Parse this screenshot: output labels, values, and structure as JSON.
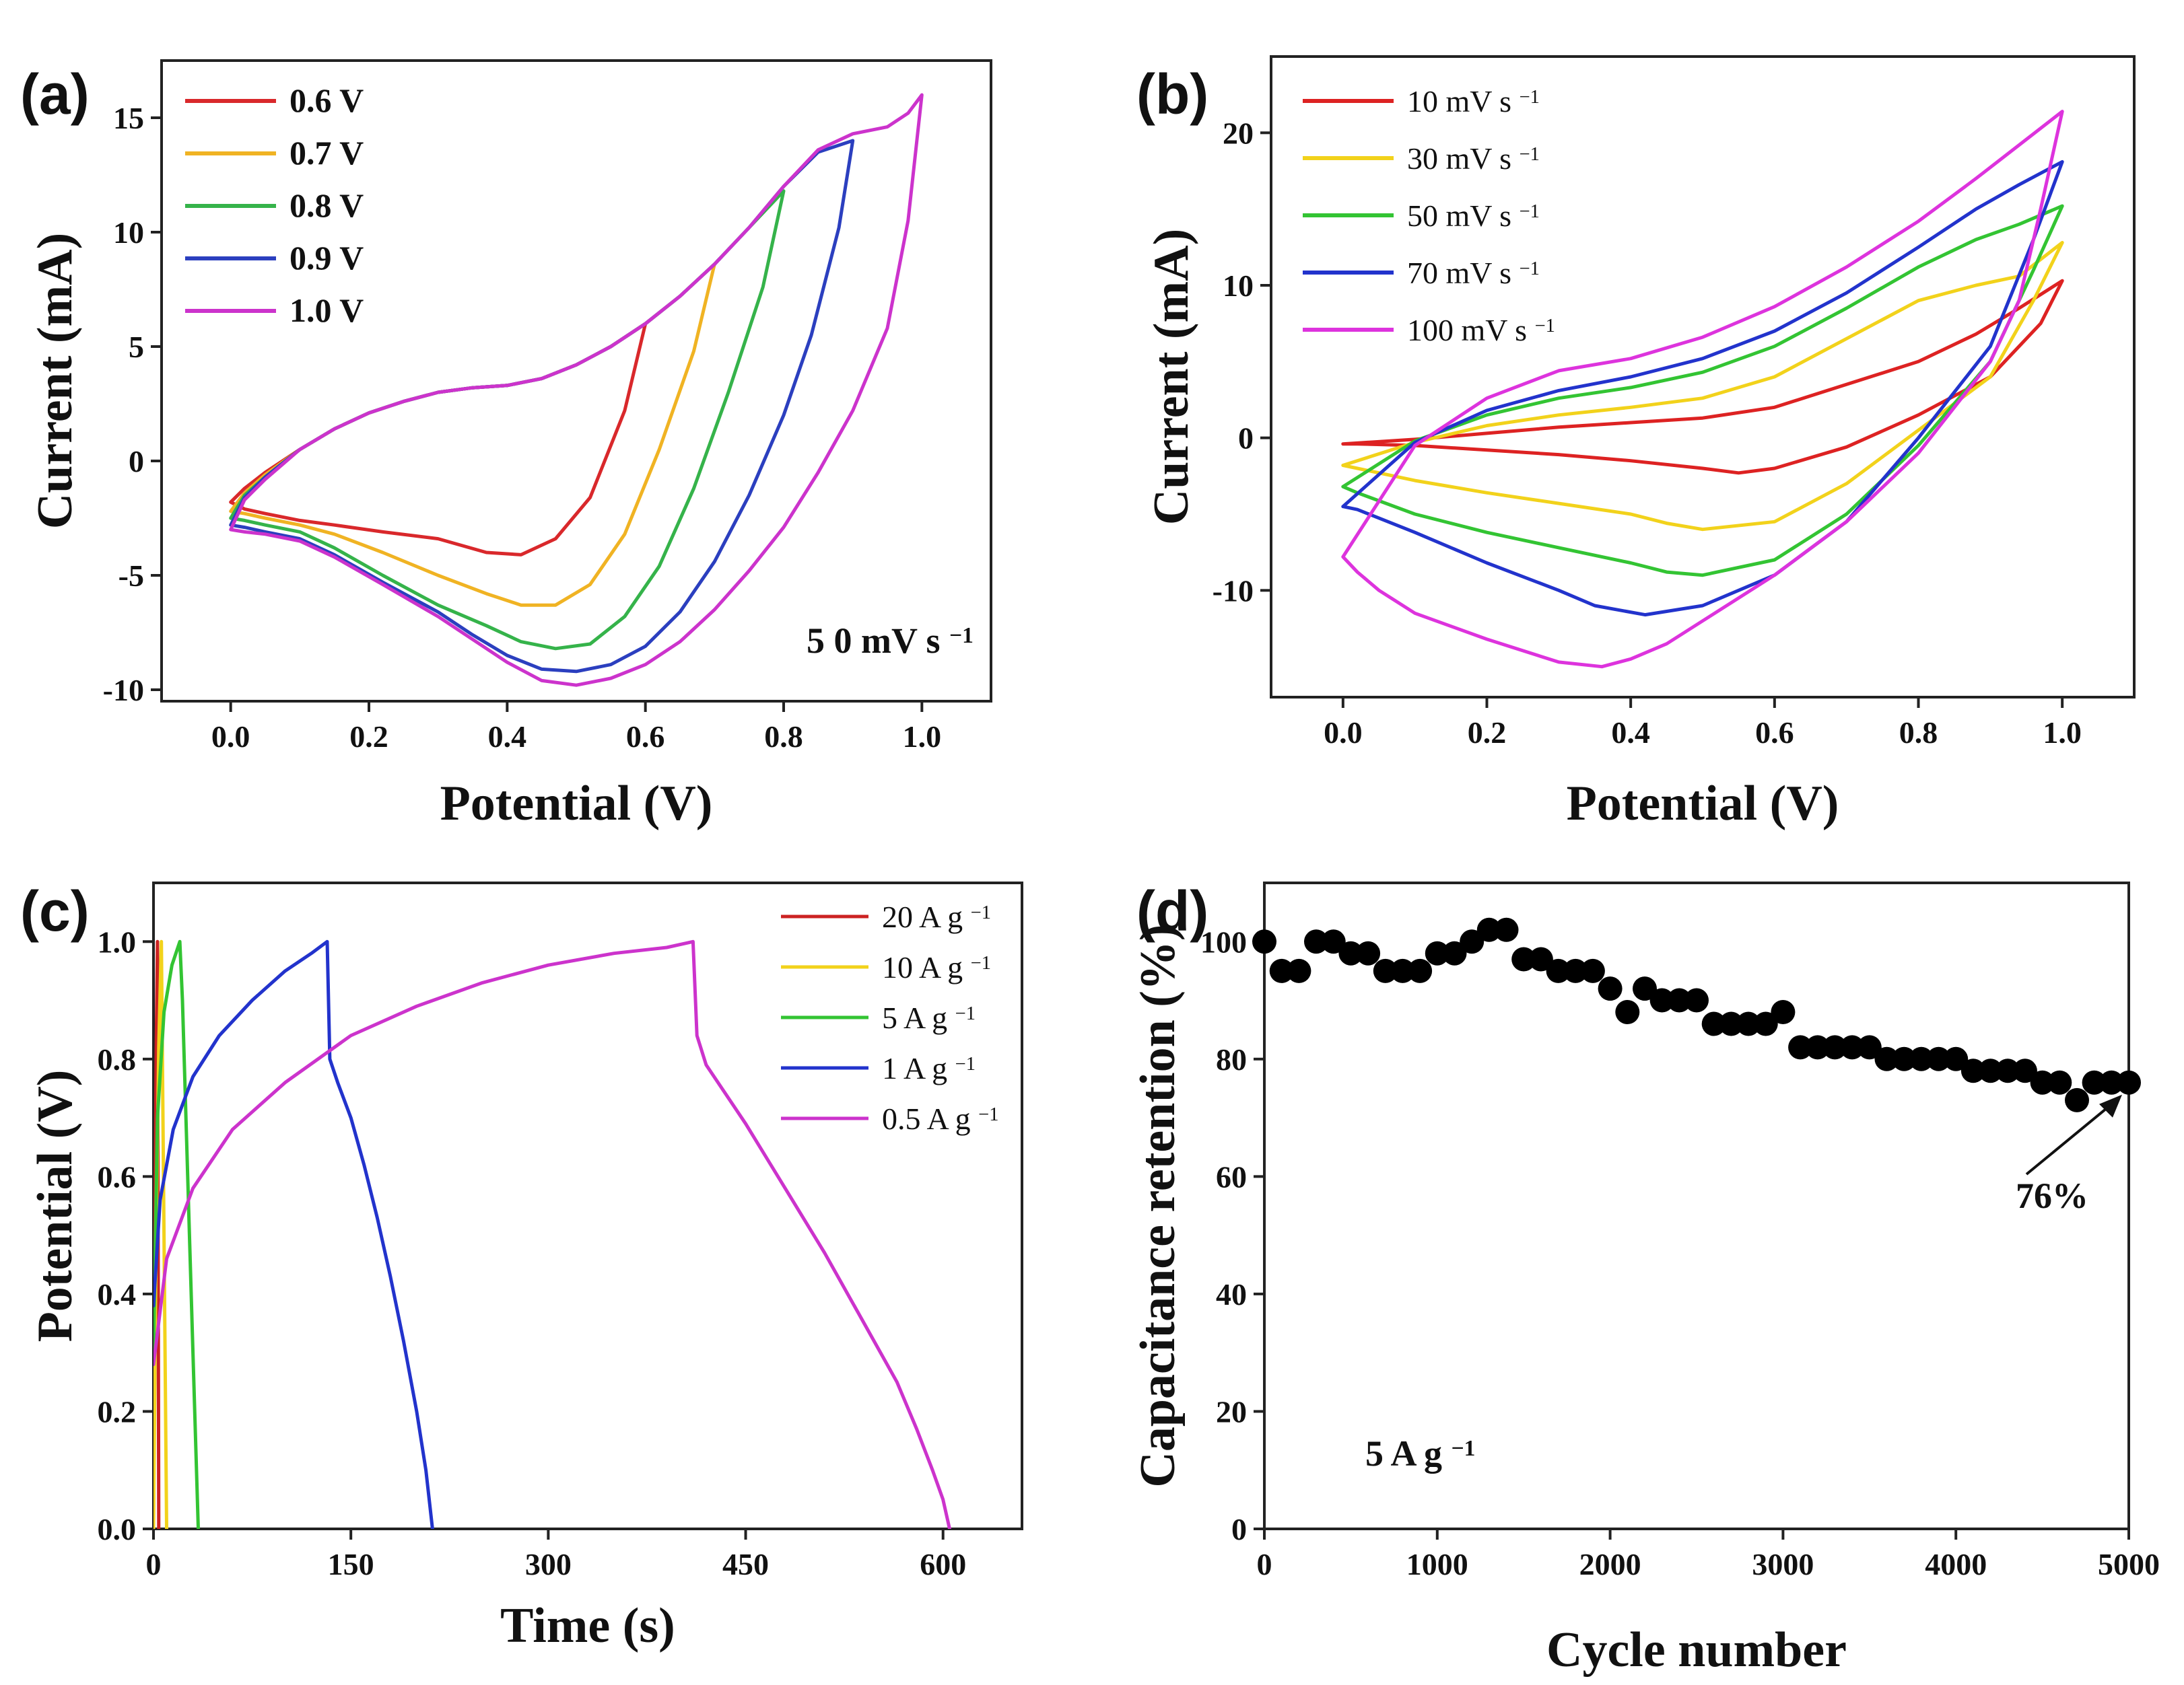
{
  "chart_data": [
    {
      "panel": "(a)",
      "type": "line",
      "xlabel": "Potential (V)",
      "ylabel": "Current (mA)",
      "xlim": [
        -0.1,
        1.1
      ],
      "ylim": [
        -10.5,
        17.5
      ],
      "xticks": [
        0.0,
        0.2,
        0.4,
        0.6,
        0.8,
        1.0
      ],
      "xtick_labels": [
        "0.0",
        "0.2",
        "0.4",
        "0.6",
        "0.8",
        "1.0"
      ],
      "yticks": [
        -10,
        -5,
        0,
        5,
        10,
        15
      ],
      "ytick_labels": [
        "-10",
        "-5",
        "0",
        "5",
        "10",
        "15"
      ],
      "legend_bold": true,
      "annotation": {
        "base": "5 0 mV s",
        "sup": "−1"
      },
      "series": [
        {
          "name": "0.6 V",
          "color": "#d9282b",
          "x": [
            0.0,
            0.02,
            0.05,
            0.1,
            0.15,
            0.2,
            0.25,
            0.3,
            0.35,
            0.4,
            0.45,
            0.5,
            0.55,
            0.6,
            0.57,
            0.52,
            0.47,
            0.42,
            0.37,
            0.3,
            0.22,
            0.15,
            0.1,
            0.05,
            0.02,
            0.0
          ],
          "y": [
            -1.8,
            -1.2,
            -0.5,
            0.5,
            1.4,
            2.1,
            2.6,
            3.0,
            3.2,
            3.3,
            3.6,
            4.2,
            5.0,
            6.0,
            2.2,
            -1.6,
            -3.4,
            -4.1,
            -4.0,
            -3.4,
            -3.1,
            -2.8,
            -2.6,
            -2.3,
            -2.1,
            -1.8
          ]
        },
        {
          "name": "0.7 V",
          "color": "#f0b323",
          "x": [
            0.0,
            0.02,
            0.05,
            0.1,
            0.15,
            0.2,
            0.25,
            0.3,
            0.35,
            0.4,
            0.45,
            0.5,
            0.55,
            0.6,
            0.65,
            0.7,
            0.67,
            0.62,
            0.57,
            0.52,
            0.47,
            0.42,
            0.37,
            0.3,
            0.22,
            0.15,
            0.1,
            0.05,
            0.02,
            0.0
          ],
          "y": [
            -2.2,
            -1.4,
            -0.6,
            0.5,
            1.4,
            2.1,
            2.6,
            3.0,
            3.2,
            3.3,
            3.6,
            4.2,
            5.0,
            6.0,
            7.2,
            8.6,
            4.8,
            0.5,
            -3.2,
            -5.4,
            -6.3,
            -6.3,
            -5.8,
            -5.0,
            -4.0,
            -3.2,
            -2.8,
            -2.5,
            -2.3,
            -2.2
          ]
        },
        {
          "name": "0.8 V",
          "color": "#35b34a",
          "x": [
            0.0,
            0.02,
            0.05,
            0.1,
            0.15,
            0.2,
            0.25,
            0.3,
            0.35,
            0.4,
            0.45,
            0.5,
            0.55,
            0.6,
            0.65,
            0.7,
            0.75,
            0.8,
            0.77,
            0.72,
            0.67,
            0.62,
            0.57,
            0.52,
            0.47,
            0.42,
            0.37,
            0.3,
            0.22,
            0.15,
            0.1,
            0.05,
            0.02,
            0.0
          ],
          "y": [
            -2.5,
            -1.5,
            -0.7,
            0.5,
            1.4,
            2.1,
            2.6,
            3.0,
            3.2,
            3.3,
            3.6,
            4.2,
            5.0,
            6.0,
            7.2,
            8.6,
            10.2,
            11.8,
            7.6,
            3.0,
            -1.2,
            -4.6,
            -6.8,
            -8.0,
            -8.2,
            -7.9,
            -7.2,
            -6.3,
            -5.0,
            -3.8,
            -3.1,
            -2.8,
            -2.6,
            -2.5
          ]
        },
        {
          "name": "0.9 V",
          "color": "#2b3fbf",
          "x": [
            0.0,
            0.02,
            0.05,
            0.1,
            0.15,
            0.2,
            0.25,
            0.3,
            0.35,
            0.4,
            0.45,
            0.5,
            0.55,
            0.6,
            0.65,
            0.7,
            0.75,
            0.8,
            0.85,
            0.9,
            0.88,
            0.84,
            0.8,
            0.75,
            0.7,
            0.65,
            0.6,
            0.55,
            0.5,
            0.45,
            0.4,
            0.35,
            0.3,
            0.22,
            0.15,
            0.1,
            0.05,
            0.02,
            0.0
          ],
          "y": [
            -2.8,
            -1.6,
            -0.7,
            0.5,
            1.4,
            2.1,
            2.6,
            3.0,
            3.2,
            3.3,
            3.6,
            4.2,
            5.0,
            6.0,
            7.2,
            8.6,
            10.2,
            12.0,
            13.5,
            14.0,
            10.2,
            5.5,
            2.0,
            -1.5,
            -4.4,
            -6.6,
            -8.1,
            -8.9,
            -9.2,
            -9.1,
            -8.5,
            -7.6,
            -6.6,
            -5.3,
            -4.1,
            -3.4,
            -3.1,
            -2.9,
            -2.8
          ]
        },
        {
          "name": "1.0 V",
          "color": "#cc33cc",
          "x": [
            0.0,
            0.02,
            0.05,
            0.1,
            0.15,
            0.2,
            0.25,
            0.3,
            0.35,
            0.4,
            0.45,
            0.5,
            0.55,
            0.6,
            0.65,
            0.7,
            0.75,
            0.8,
            0.85,
            0.9,
            0.95,
            0.98,
            1.0,
            0.98,
            0.95,
            0.9,
            0.85,
            0.8,
            0.75,
            0.7,
            0.65,
            0.6,
            0.55,
            0.5,
            0.45,
            0.4,
            0.35,
            0.3,
            0.22,
            0.15,
            0.1,
            0.05,
            0.02,
            0.0
          ],
          "y": [
            -3.0,
            -1.7,
            -0.8,
            0.5,
            1.4,
            2.1,
            2.6,
            3.0,
            3.2,
            3.3,
            3.6,
            4.2,
            5.0,
            6.0,
            7.2,
            8.6,
            10.2,
            12.0,
            13.6,
            14.3,
            14.6,
            15.2,
            16.0,
            10.5,
            5.8,
            2.2,
            -0.5,
            -2.9,
            -4.8,
            -6.5,
            -7.9,
            -8.9,
            -9.5,
            -9.8,
            -9.6,
            -8.8,
            -7.8,
            -6.8,
            -5.4,
            -4.2,
            -3.5,
            -3.2,
            -3.1,
            -3.0
          ]
        }
      ]
    },
    {
      "panel": "(b)",
      "type": "line",
      "xlabel": "Potential (V)",
      "ylabel": "Current (mA)",
      "xlim": [
        -0.1,
        1.1
      ],
      "ylim": [
        -17,
        25
      ],
      "xticks": [
        0.0,
        0.2,
        0.4,
        0.6,
        0.8,
        1.0
      ],
      "xtick_labels": [
        "0.0",
        "0.2",
        "0.4",
        "0.6",
        "0.8",
        "1.0"
      ],
      "yticks": [
        -10,
        0,
        10,
        20
      ],
      "ytick_labels": [
        "-10",
        "0",
        "10",
        "20"
      ],
      "legend_bold": false,
      "series": [
        {
          "name": "10 mV s",
          "sup": "−1",
          "color": "#dd2222",
          "x": [
            0.0,
            0.1,
            0.2,
            0.3,
            0.4,
            0.5,
            0.6,
            0.7,
            0.8,
            0.88,
            0.94,
            1.0,
            0.97,
            0.9,
            0.8,
            0.7,
            0.6,
            0.55,
            0.5,
            0.4,
            0.3,
            0.2,
            0.1,
            0.02,
            0.0
          ],
          "y": [
            -0.4,
            -0.1,
            0.3,
            0.7,
            1.0,
            1.3,
            2.0,
            3.5,
            5.0,
            6.8,
            8.5,
            10.3,
            7.5,
            4.0,
            1.5,
            -0.6,
            -2.0,
            -2.3,
            -2.0,
            -1.5,
            -1.1,
            -0.8,
            -0.5,
            -0.4,
            -0.4
          ]
        },
        {
          "name": "30 mV s",
          "sup": "−1",
          "color": "#f2d21b",
          "x": [
            0.0,
            0.1,
            0.2,
            0.3,
            0.4,
            0.5,
            0.6,
            0.7,
            0.8,
            0.88,
            0.94,
            1.0,
            0.96,
            0.9,
            0.8,
            0.7,
            0.6,
            0.5,
            0.45,
            0.4,
            0.3,
            0.2,
            0.1,
            0.02,
            0.0
          ],
          "y": [
            -1.8,
            -0.3,
            0.8,
            1.5,
            2.0,
            2.6,
            4.0,
            6.5,
            9.0,
            10.0,
            10.6,
            12.8,
            9.0,
            4.0,
            0.5,
            -3.0,
            -5.5,
            -6.0,
            -5.6,
            -5.0,
            -4.3,
            -3.6,
            -2.8,
            -2.0,
            -1.8
          ]
        },
        {
          "name": "50 mV s",
          "sup": "−1",
          "color": "#33c433",
          "x": [
            0.0,
            0.1,
            0.2,
            0.3,
            0.4,
            0.5,
            0.6,
            0.7,
            0.8,
            0.88,
            0.94,
            1.0,
            0.96,
            0.9,
            0.8,
            0.7,
            0.6,
            0.5,
            0.45,
            0.4,
            0.3,
            0.2,
            0.1,
            0.02,
            0.0
          ],
          "y": [
            -3.2,
            -0.2,
            1.5,
            2.6,
            3.3,
            4.3,
            6.0,
            8.5,
            11.2,
            13.0,
            14.0,
            15.2,
            11.0,
            5.0,
            -0.5,
            -5.0,
            -8.0,
            -9.0,
            -8.8,
            -8.2,
            -7.2,
            -6.2,
            -5.0,
            -3.6,
            -3.2
          ]
        },
        {
          "name": "70 mV s",
          "sup": "−1",
          "color": "#2233cc",
          "x": [
            0.0,
            0.1,
            0.2,
            0.3,
            0.4,
            0.5,
            0.6,
            0.7,
            0.8,
            0.88,
            0.94,
            1.0,
            0.96,
            0.9,
            0.8,
            0.7,
            0.6,
            0.5,
            0.42,
            0.35,
            0.3,
            0.2,
            0.1,
            0.02,
            0.0
          ],
          "y": [
            -4.5,
            -0.3,
            1.8,
            3.1,
            4.0,
            5.2,
            7.0,
            9.5,
            12.5,
            15.0,
            16.6,
            18.1,
            13.0,
            6.0,
            0.0,
            -5.5,
            -9.0,
            -11.0,
            -11.6,
            -11.0,
            -10.0,
            -8.2,
            -6.2,
            -4.7,
            -4.5
          ]
        },
        {
          "name": "100 mV s",
          "sup": "−1",
          "color": "#dd33dd",
          "x": [
            0.0,
            0.1,
            0.2,
            0.3,
            0.4,
            0.5,
            0.6,
            0.7,
            0.8,
            0.88,
            0.94,
            1.0,
            0.97,
            0.94,
            0.9,
            0.8,
            0.7,
            0.6,
            0.5,
            0.45,
            0.4,
            0.36,
            0.3,
            0.2,
            0.1,
            0.05,
            0.02,
            0.0
          ],
          "y": [
            -7.8,
            -0.5,
            2.6,
            4.4,
            5.2,
            6.6,
            8.6,
            11.2,
            14.2,
            17.0,
            19.2,
            21.4,
            15.0,
            9.0,
            5.0,
            -1.0,
            -5.5,
            -9.0,
            -12.0,
            -13.5,
            -14.5,
            -15.0,
            -14.7,
            -13.2,
            -11.5,
            -10.0,
            -8.8,
            -7.8
          ]
        }
      ]
    },
    {
      "panel": "(c)",
      "type": "line",
      "xlabel": "Time (s)",
      "ylabel": "Potential (V)",
      "xlim": [
        0,
        660
      ],
      "ylim": [
        0,
        1.1
      ],
      "xticks": [
        0,
        150,
        300,
        450,
        600
      ],
      "xtick_labels": [
        "0",
        "150",
        "300",
        "450",
        "600"
      ],
      "yticks": [
        0.0,
        0.2,
        0.4,
        0.6,
        0.8,
        1.0
      ],
      "ytick_labels": [
        "0.0",
        "0.2",
        "0.4",
        "0.6",
        "0.8",
        "1.0"
      ],
      "legend_bold": false,
      "series": [
        {
          "name": "20 A g",
          "sup": "−1",
          "color": "#cc2222",
          "x": [
            0,
            1,
            2,
            3,
            4
          ],
          "y": [
            0.0,
            0.45,
            0.8,
            1.0,
            0.0
          ]
        },
        {
          "name": "10 A g",
          "sup": "−1",
          "color": "#f2d21b",
          "x": [
            0,
            2,
            4,
            6,
            10
          ],
          "y": [
            0.0,
            0.5,
            0.82,
            1.0,
            0.0
          ]
        },
        {
          "name": "5 A g",
          "sup": "−1",
          "color": "#33c433",
          "x": [
            0,
            3,
            8,
            14,
            20,
            22,
            26,
            30,
            34
          ],
          "y": [
            0.3,
            0.7,
            0.88,
            0.96,
            1.0,
            0.9,
            0.6,
            0.3,
            0.0
          ]
        },
        {
          "name": "1 A g",
          "sup": "−1",
          "color": "#2233cc",
          "x": [
            0,
            5,
            15,
            30,
            50,
            75,
            100,
            120,
            132,
            134,
            140,
            150,
            160,
            170,
            180,
            190,
            200,
            207,
            212
          ],
          "y": [
            0.38,
            0.56,
            0.68,
            0.77,
            0.84,
            0.9,
            0.95,
            0.98,
            1.0,
            0.8,
            0.76,
            0.7,
            0.62,
            0.53,
            0.43,
            0.32,
            0.2,
            0.1,
            0.0
          ]
        },
        {
          "name": "0.5 A g",
          "sup": "−1",
          "color": "#cc33cc",
          "x": [
            0,
            10,
            30,
            60,
            100,
            150,
            200,
            250,
            300,
            350,
            390,
            410,
            413,
            420,
            450,
            480,
            510,
            540,
            565,
            580,
            592,
            600,
            605
          ],
          "y": [
            0.28,
            0.46,
            0.58,
            0.68,
            0.76,
            0.84,
            0.89,
            0.93,
            0.96,
            0.98,
            0.99,
            1.0,
            0.84,
            0.79,
            0.69,
            0.58,
            0.47,
            0.35,
            0.25,
            0.17,
            0.1,
            0.05,
            0.0
          ]
        }
      ]
    },
    {
      "panel": "(d)",
      "type": "scatter",
      "xlabel": "Cycle number",
      "ylabel": "Capacitance retention (%)",
      "xlim": [
        0,
        5000
      ],
      "ylim": [
        0,
        110
      ],
      "xticks": [
        0,
        1000,
        2000,
        3000,
        4000,
        5000
      ],
      "xtick_labels": [
        "0",
        "1000",
        "2000",
        "3000",
        "4000",
        "5000"
      ],
      "yticks": [
        0,
        20,
        40,
        60,
        80,
        100
      ],
      "ytick_labels": [
        "0",
        "20",
        "40",
        "60",
        "80",
        "100"
      ],
      "annotation": {
        "base": "5 A g",
        "sup": "−1"
      },
      "callout": "76%",
      "series": [
        {
          "name": "retention",
          "color": "#000000",
          "x": [
            0,
            100,
            200,
            300,
            400,
            500,
            600,
            700,
            800,
            900,
            1000,
            1100,
            1200,
            1300,
            1400,
            1500,
            1600,
            1700,
            1800,
            1900,
            2000,
            2100,
            2200,
            2300,
            2400,
            2500,
            2600,
            2700,
            2800,
            2900,
            3000,
            3100,
            3200,
            3300,
            3400,
            3500,
            3600,
            3700,
            3800,
            3900,
            4000,
            4100,
            4200,
            4300,
            4400,
            4500,
            4600,
            4700,
            4800,
            4900,
            5000
          ],
          "y": [
            100,
            95,
            95,
            100,
            100,
            98,
            98,
            95,
            95,
            95,
            98,
            98,
            100,
            102,
            102,
            97,
            97,
            95,
            95,
            95,
            92,
            88,
            92,
            90,
            90,
            90,
            86,
            86,
            86,
            86,
            88,
            82,
            82,
            82,
            82,
            82,
            80,
            80,
            80,
            80,
            80,
            78,
            78,
            78,
            78,
            76,
            76,
            73,
            76,
            76,
            76
          ]
        }
      ]
    }
  ]
}
